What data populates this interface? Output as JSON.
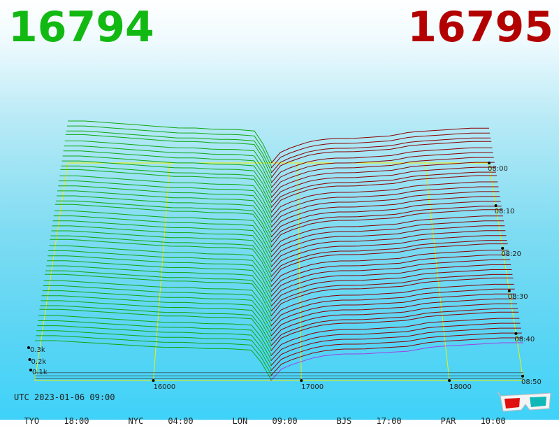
{
  "header": {
    "best_bid": "16794",
    "best_ask": "16795"
  },
  "footer": {
    "utc": "UTC 2023-01-06 09:00",
    "zones": [
      {
        "city": "TYO",
        "time": "18:00"
      },
      {
        "city": "NYC",
        "time": "04:00"
      },
      {
        "city": "LON",
        "time": "09:00"
      },
      {
        "city": "BJS",
        "time": "17:00"
      },
      {
        "city": "PAR",
        "time": "10:00"
      }
    ]
  },
  "colors": {
    "bid": "#13b913",
    "ask": "#b30000",
    "grid": "#f0f000",
    "bid_line": "#0fa80f",
    "ask_line": "#8a0000",
    "latest": "#a040e0"
  },
  "icons": {
    "glasses": "3d-glasses-icon"
  },
  "chart_data": {
    "type": "area",
    "view": "3d-depth-stack",
    "x_ticks": [
      "16000",
      "17000",
      "18000"
    ],
    "z_ticks": [
      "0.1k",
      "0.2k",
      "0.3k"
    ],
    "time_ticks": [
      "08:00",
      "08:10",
      "08:20",
      "08:30",
      "08:40",
      "08:50"
    ],
    "price_range": [
      15200,
      18500
    ],
    "mid_price": 16794.5,
    "time_range": [
      "08:00",
      "08:50"
    ],
    "snapshot_count": 45,
    "bid_depth_k": [
      0.3,
      0.3,
      0.29,
      0.28,
      0.27,
      0.26,
      0.25,
      0.25,
      0.24,
      0.24,
      0.23,
      0.22
    ],
    "ask_depth_k": [
      0.05,
      0.12,
      0.17,
      0.19,
      0.19,
      0.2,
      0.21,
      0.24,
      0.25,
      0.26,
      0.27,
      0.27
    ]
  }
}
